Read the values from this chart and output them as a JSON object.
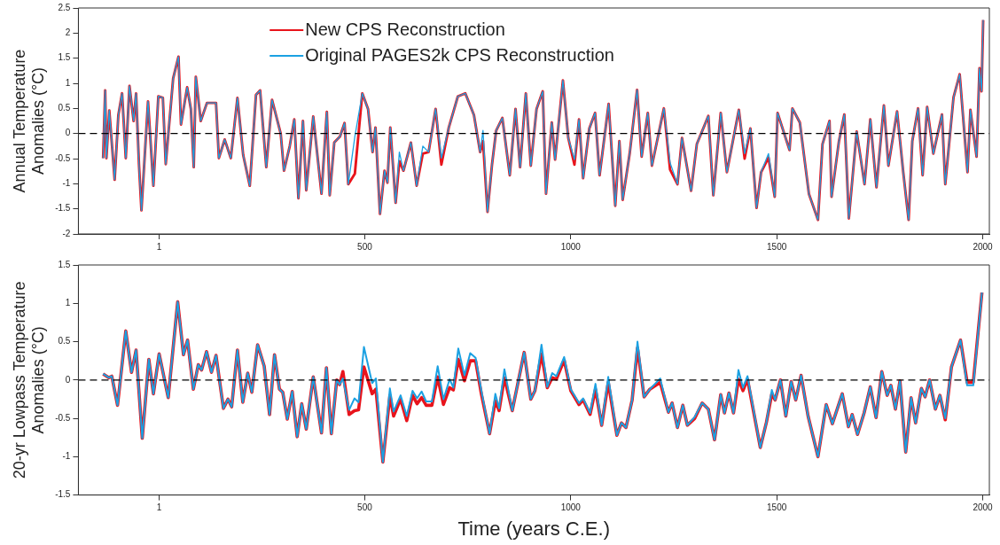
{
  "chart_data": [
    {
      "type": "line",
      "ylabel": "Annual Temperature Anomalies (°C)",
      "legend": "top",
      "grid": false,
      "xlim": [
        -195,
        2016
      ],
      "xticks": [
        1,
        500,
        1000,
        1500,
        2000
      ],
      "ylim": [
        -2,
        2.5
      ],
      "yticks": [
        -2,
        -1.5,
        -1,
        -0.5,
        0,
        0.5,
        1,
        1.5,
        2,
        2.5
      ],
      "ref_lines": [
        {
          "axis": "y",
          "value": 0,
          "color": "#000000",
          "line_style": "dashed"
        }
      ],
      "x": [
        -135,
        -130,
        -127,
        -120,
        -107,
        -98,
        -89,
        -80,
        -71,
        -61,
        -55,
        -48,
        -42,
        -26,
        -13,
        -1,
        10,
        17,
        35,
        48,
        54,
        69,
        78,
        85,
        90,
        102,
        117,
        139,
        146,
        160,
        175,
        191,
        205,
        221,
        236,
        246,
        261,
        275,
        296,
        304,
        318,
        329,
        339,
        350,
        358,
        375,
        395,
        408,
        415,
        426,
        440,
        451,
        460,
        476,
        494,
        508,
        519,
        526,
        537,
        548,
        555,
        562,
        575,
        584,
        594,
        612,
        626,
        641,
        655,
        672,
        686,
        704,
        726,
        744,
        765,
        780,
        787,
        798,
        809,
        819,
        834,
        852,
        866,
        877,
        891,
        903,
        917,
        932,
        940,
        954,
        962,
        981,
        994,
        1009,
        1020,
        1030,
        1045,
        1059,
        1070,
        1092,
        1108,
        1118,
        1126,
        1143,
        1161,
        1172,
        1187,
        1197,
        1226,
        1241,
        1259,
        1270,
        1292,
        1306,
        1334,
        1346,
        1364,
        1379,
        1408,
        1422,
        1436,
        1451,
        1462,
        1480,
        1495,
        1502,
        1531,
        1538,
        1556,
        1578,
        1600,
        1611,
        1628,
        1633,
        1651,
        1664,
        1675,
        1694,
        1713,
        1727,
        1742,
        1760,
        1771,
        1792,
        1807,
        1820,
        1829,
        1843,
        1854,
        1865,
        1880,
        1901,
        1909,
        1929,
        1944,
        1963,
        1970,
        1985,
        1992,
        1997,
        2001
      ],
      "series": [
        {
          "name": "New CPS Reconstruction",
          "color": "#e8141c",
          "values": [
            -0.49,
            0.86,
            -0.49,
            0.46,
            -0.92,
            0.37,
            0.8,
            -0.49,
            0.95,
            0.25,
            0.8,
            -0.61,
            -1.53,
            0.64,
            -1.04,
            0.74,
            0.71,
            -0.61,
            1.1,
            1.53,
            0.18,
            0.92,
            0.49,
            -0.67,
            1.13,
            0.25,
            0.61,
            0.61,
            -0.49,
            -0.12,
            -0.49,
            0.71,
            -0.43,
            -1.04,
            0.77,
            0.86,
            -0.67,
            0.67,
            0,
            -0.74,
            -0.25,
            0.28,
            -1.29,
            0.25,
            -1.13,
            0.34,
            -1.2,
            0.43,
            -1.23,
            -0.18,
            -0.06,
            0.21,
            -1.01,
            -0.8,
            0.8,
            0.49,
            -0.37,
            0.12,
            -1.6,
            -0.74,
            -0.98,
            0.12,
            -1.38,
            -0.55,
            -0.74,
            -0.18,
            -1.04,
            -0.4,
            -0.37,
            0.49,
            -0.62,
            0.12,
            0.74,
            0.8,
            0.37,
            -0.37,
            -0.15,
            -1.56,
            -0.61,
            0.06,
            0.31,
            -0.83,
            0.49,
            -0.67,
            0.8,
            -0.64,
            0.49,
            0.84,
            -1.2,
            0.22,
            -0.52,
            1.06,
            -0.09,
            -0.62,
            0.28,
            -0.89,
            0.1,
            0.41,
            -0.83,
            0.59,
            -1.44,
            -0.15,
            -1.32,
            -0.4,
            0.87,
            -0.46,
            0.41,
            -0.64,
            0.5,
            -0.72,
            -1.01,
            -0.09,
            -1.14,
            -0.21,
            0.35,
            -1.23,
            0.41,
            -0.77,
            0.47,
            -0.5,
            0.1,
            -1.48,
            -0.77,
            -0.48,
            -1.26,
            0.41,
            -0.33,
            0.5,
            0.22,
            -1.2,
            -1.72,
            -0.21,
            0.25,
            -1.26,
            -0.15,
            0.38,
            -1.69,
            0.04,
            -1.01,
            0.28,
            -1.07,
            0.56,
            -0.64,
            0.44,
            -0.77,
            -1.72,
            -0.15,
            0.5,
            -0.83,
            0.53,
            -0.4,
            0.38,
            -1.01,
            0.72,
            1.18,
            -0.77,
            0.47,
            -0.46,
            1.3,
            0.84,
            2.26
          ]
        },
        {
          "name": "Original PAGES2k CPS Reconstruction",
          "color": "#1ba1e2",
          "values": [
            -0.49,
            0.86,
            -0.49,
            0.46,
            -0.92,
            0.37,
            0.8,
            -0.49,
            0.95,
            0.25,
            0.8,
            -0.61,
            -1.53,
            0.64,
            -1.04,
            0.74,
            0.71,
            -0.61,
            1.1,
            1.53,
            0.18,
            0.92,
            0.49,
            -0.67,
            1.13,
            0.25,
            0.61,
            0.61,
            -0.49,
            -0.12,
            -0.49,
            0.71,
            -0.43,
            -1.04,
            0.77,
            0.86,
            -0.67,
            0.67,
            0,
            -0.74,
            -0.25,
            0.28,
            -1.29,
            0.25,
            -1.13,
            0.34,
            -1.2,
            0.43,
            -1.23,
            -0.18,
            -0.06,
            0.21,
            -1.01,
            -0.06,
            0.8,
            0.49,
            -0.37,
            0.12,
            -1.6,
            -0.74,
            -0.98,
            0.12,
            -1.38,
            -0.37,
            -0.74,
            -0.18,
            -1.04,
            -0.25,
            -0.37,
            0.49,
            -0.49,
            0.12,
            0.74,
            0.8,
            0.37,
            -0.37,
            0.06,
            -1.56,
            -0.61,
            0.06,
            0.31,
            -0.83,
            0.49,
            -0.67,
            0.8,
            -0.64,
            0.49,
            0.84,
            -1.2,
            0.22,
            -0.52,
            1.06,
            -0.09,
            -0.52,
            0.28,
            -0.89,
            0.1,
            0.41,
            -0.83,
            0.59,
            -1.44,
            -0.15,
            -1.32,
            -0.4,
            0.87,
            -0.46,
            0.41,
            -0.64,
            0.5,
            -0.58,
            -1.01,
            -0.09,
            -1.14,
            -0.21,
            0.35,
            -1.23,
            0.41,
            -0.77,
            0.47,
            -0.4,
            0.1,
            -1.48,
            -0.77,
            -0.4,
            -1.26,
            0.41,
            -0.33,
            0.5,
            0.22,
            -1.2,
            -1.72,
            -0.21,
            0.25,
            -1.26,
            -0.15,
            0.38,
            -1.69,
            0.04,
            -1.01,
            0.28,
            -1.07,
            0.56,
            -0.64,
            0.44,
            -0.77,
            -1.72,
            -0.15,
            0.5,
            -0.83,
            0.53,
            -0.4,
            0.38,
            -1.01,
            0.72,
            1.18,
            -0.77,
            0.47,
            -0.46,
            1.3,
            0.84,
            2.26
          ]
        }
      ]
    },
    {
      "type": "line",
      "xlabel": "Time (years C.E.)",
      "ylabel": "20-yr Lowpass Temperature Anomalies (°C)",
      "grid": false,
      "xlim": [
        -195,
        2016
      ],
      "xticks": [
        1,
        500,
        1000,
        1500,
        2000
      ],
      "ylim": [
        -1.5,
        1.5
      ],
      "yticks": [
        -1.5,
        -1,
        -0.5,
        0,
        0.5,
        1,
        1.5
      ],
      "ref_lines": [
        {
          "axis": "y",
          "value": 0,
          "color": "#000000",
          "line_style": "dashed"
        }
      ],
      "x": [
        -135,
        -121,
        -114,
        -100,
        -80,
        -66,
        -55,
        -40,
        -24,
        -13,
        1,
        23,
        46,
        60,
        70,
        84,
        96,
        104,
        116,
        128,
        139,
        157,
        168,
        177,
        191,
        204,
        216,
        226,
        240,
        256,
        269,
        281,
        293,
        301,
        312,
        324,
        336,
        347,
        358,
        375,
        395,
        407,
        419,
        432,
        439,
        447,
        462,
        475,
        485,
        498,
        518,
        527,
        544,
        561,
        570,
        587,
        602,
        616,
        627,
        638,
        649,
        663,
        677,
        691,
        706,
        715,
        727,
        742,
        756,
        769,
        783,
        803,
        817,
        826,
        839,
        858,
        887,
        903,
        913,
        929,
        943,
        955,
        965,
        984,
        1000,
        1020,
        1030,
        1047,
        1060,
        1075,
        1091,
        1112,
        1123,
        1134,
        1149,
        1162,
        1178,
        1192,
        1217,
        1237,
        1246,
        1259,
        1272,
        1283,
        1301,
        1319,
        1334,
        1349,
        1364,
        1373,
        1384,
        1395,
        1407,
        1418,
        1429,
        1460,
        1475,
        1488,
        1496,
        1509,
        1522,
        1535,
        1546,
        1559,
        1576,
        1600,
        1620,
        1635,
        1659,
        1674,
        1683,
        1696,
        1712,
        1727,
        1741,
        1755,
        1768,
        1777,
        1788,
        1799,
        1813,
        1826,
        1837,
        1851,
        1860,
        1871,
        1885,
        1896,
        1909,
        1924,
        1946,
        1962,
        1977,
        1998
      ],
      "series": [
        {
          "color": "#e8141c",
          "values": [
            0.08,
            0.03,
            0.05,
            -0.33,
            0.64,
            0.1,
            0.39,
            -0.76,
            0.27,
            -0.18,
            0.34,
            -0.23,
            1.02,
            0.33,
            0.52,
            -0.12,
            0.2,
            0.13,
            0.37,
            0.1,
            0.32,
            -0.37,
            -0.25,
            -0.35,
            0.39,
            -0.29,
            0.09,
            -0.16,
            0.46,
            0.18,
            -0.45,
            0.33,
            -0.12,
            -0.16,
            -0.51,
            -0.15,
            -0.74,
            -0.31,
            -0.64,
            0.04,
            -0.69,
            0.16,
            -0.7,
            0,
            -0.06,
            0.11,
            -0.45,
            -0.4,
            -0.39,
            0.17,
            -0.18,
            -0.12,
            -1.07,
            -0.2,
            -0.47,
            -0.25,
            -0.53,
            -0.2,
            -0.31,
            -0.23,
            -0.33,
            -0.33,
            0.04,
            -0.32,
            -0.1,
            -0.13,
            0.27,
            -0.01,
            0.25,
            0.25,
            -0.18,
            -0.7,
            -0.27,
            -0.4,
            0.03,
            -0.4,
            0.36,
            -0.25,
            -0.14,
            0.34,
            -0.1,
            0.03,
            0.01,
            0.26,
            -0.14,
            -0.32,
            -0.26,
            -0.45,
            -0.12,
            -0.59,
            -0.03,
            -0.72,
            -0.56,
            -0.62,
            -0.26,
            0.42,
            -0.22,
            -0.12,
            -0.03,
            -0.42,
            -0.3,
            -0.62,
            -0.33,
            -0.59,
            -0.5,
            -0.3,
            -0.38,
            -0.78,
            -0.19,
            -0.43,
            -0.17,
            -0.43,
            0.01,
            -0.14,
            0.01,
            -0.88,
            -0.55,
            -0.18,
            -0.26,
            0,
            -0.47,
            -0.02,
            -0.26,
            0.06,
            -0.47,
            -1,
            -0.32,
            -0.57,
            -0.18,
            -0.61,
            -0.45,
            -0.71,
            -0.43,
            -0.09,
            -0.49,
            0.11,
            -0.2,
            -0.07,
            -0.38,
            -0.01,
            -0.94,
            -0.23,
            -0.56,
            -0.11,
            -0.22,
            0,
            -0.38,
            -0.2,
            -0.52,
            0.17,
            0.52,
            -0.03,
            -0.03,
            1.14
          ]
        },
        {
          "color": "#1ba1e2",
          "values": [
            0.08,
            0.03,
            0.05,
            -0.33,
            0.64,
            0.1,
            0.39,
            -0.76,
            0.27,
            -0.18,
            0.34,
            -0.23,
            1.02,
            0.33,
            0.52,
            -0.12,
            0.2,
            0.13,
            0.37,
            0.1,
            0.32,
            -0.37,
            -0.25,
            -0.35,
            0.39,
            -0.29,
            0.09,
            -0.16,
            0.46,
            0.18,
            -0.45,
            0.33,
            -0.12,
            -0.16,
            -0.51,
            -0.15,
            -0.74,
            -0.31,
            -0.64,
            0.04,
            -0.69,
            0.16,
            -0.7,
            0,
            -0.06,
            0.02,
            -0.39,
            -0.24,
            -0.29,
            0.43,
            -0.04,
            0.02,
            -1.07,
            -0.11,
            -0.41,
            -0.2,
            -0.47,
            -0.14,
            -0.24,
            -0.15,
            -0.28,
            -0.28,
            0.18,
            -0.25,
            0.01,
            -0.1,
            0.41,
            0.06,
            0.35,
            0.29,
            -0.14,
            -0.7,
            -0.18,
            -0.37,
            0.14,
            -0.4,
            0.36,
            -0.25,
            -0.14,
            0.46,
            -0.09,
            0.09,
            0.05,
            0.3,
            -0.12,
            -0.3,
            -0.24,
            -0.43,
            -0.05,
            -0.59,
            0.04,
            -0.72,
            -0.56,
            -0.62,
            -0.26,
            0.5,
            -0.22,
            -0.12,
            0.02,
            -0.42,
            -0.3,
            -0.62,
            -0.33,
            -0.59,
            -0.48,
            -0.3,
            -0.38,
            -0.78,
            -0.19,
            -0.43,
            -0.17,
            -0.43,
            0.13,
            -0.1,
            0.05,
            -0.88,
            -0.55,
            -0.13,
            -0.26,
            0,
            -0.47,
            -0.02,
            -0.26,
            0.06,
            -0.47,
            -1,
            -0.32,
            -0.57,
            -0.18,
            -0.61,
            -0.45,
            -0.71,
            -0.43,
            -0.09,
            -0.49,
            0.11,
            -0.2,
            -0.07,
            -0.38,
            -0.01,
            -0.94,
            -0.23,
            -0.56,
            -0.11,
            -0.22,
            0,
            -0.38,
            -0.2,
            -0.5,
            0.17,
            0.52,
            -0.07,
            -0.07,
            1.14
          ]
        }
      ]
    }
  ]
}
